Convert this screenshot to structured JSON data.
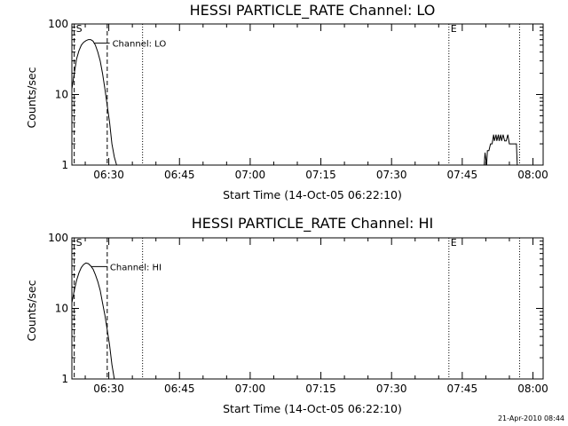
{
  "footer": {
    "date": "21-Apr-2010 08:44"
  },
  "chart_data": [
    {
      "type": "line",
      "title": "HESSI PARTICLE_RATE Channel: LO",
      "xlabel": "Start Time (14-Oct-05 06:22:10)",
      "ylabel": "Counts/sec",
      "yscale": "log",
      "ylim": [
        1,
        100
      ],
      "xlim": [
        "06:22:10",
        "08:02:10"
      ],
      "yticks": [
        "1",
        "10",
        "100"
      ],
      "xticks": [
        "06:30",
        "06:45",
        "07:00",
        "07:15",
        "07:30",
        "07:45",
        "08:00"
      ],
      "grid": false,
      "series": [
        {
          "name": "Channel: LO",
          "points": [
            [
              "06:22:10",
              12
            ],
            [
              "06:22:40",
              20
            ],
            [
              "06:23:10",
              32
            ],
            [
              "06:23:40",
              42
            ],
            [
              "06:24:10",
              50
            ],
            [
              "06:24:40",
              55
            ],
            [
              "06:25:10",
              58
            ],
            [
              "06:25:40",
              60
            ],
            [
              "06:26:10",
              60
            ],
            [
              "06:26:40",
              57
            ],
            [
              "06:27:10",
              50
            ],
            [
              "06:27:40",
              40
            ],
            [
              "06:28:10",
              30
            ],
            [
              "06:28:40",
              20
            ],
            [
              "06:29:10",
              12
            ],
            [
              "06:29:40",
              7
            ],
            [
              "06:30:10",
              4
            ],
            [
              "06:30:40",
              2
            ],
            [
              "06:31:10",
              1.3
            ],
            [
              "06:31:40",
              1
            ],
            [
              null,
              null
            ],
            [
              "07:49:40",
              1
            ],
            [
              "07:49:50",
              1.5
            ],
            [
              "07:50:10",
              1
            ],
            [
              "07:50:20",
              1.6
            ],
            [
              "07:50:40",
              1.6
            ],
            [
              "07:51:00",
              2
            ],
            [
              "07:51:20",
              2
            ],
            [
              "07:51:40",
              2.7
            ],
            [
              "07:51:50",
              2.2
            ],
            [
              "07:52:10",
              2.7
            ],
            [
              "07:52:20",
              2.2
            ],
            [
              "07:52:40",
              2.7
            ],
            [
              "07:52:50",
              2.2
            ],
            [
              "07:53:10",
              2.7
            ],
            [
              "07:53:20",
              2.2
            ],
            [
              "07:53:40",
              2.7
            ],
            [
              "07:54:00",
              2.2
            ],
            [
              "07:54:20",
              2.2
            ],
            [
              "07:54:40",
              2.7
            ],
            [
              "07:55:00",
              2
            ],
            [
              "07:56:30",
              2
            ],
            [
              "07:56:40",
              1
            ]
          ]
        }
      ],
      "markers": [
        {
          "label": "S",
          "time": "06:22:40",
          "style": "dashed"
        },
        {
          "label": "",
          "time": "06:29:40",
          "style": "dashed"
        },
        {
          "label": "",
          "time": "06:37:10",
          "style": "dotted"
        },
        {
          "label": "E",
          "time": "07:42:10",
          "style": "dotted"
        },
        {
          "label": "",
          "time": "07:57:10",
          "style": "dotted"
        }
      ]
    },
    {
      "type": "line",
      "title": "HESSI PARTICLE_RATE Channel: HI",
      "xlabel": "Start Time (14-Oct-05 06:22:10)",
      "ylabel": "Counts/sec",
      "yscale": "log",
      "ylim": [
        1,
        100
      ],
      "xlim": [
        "06:22:10",
        "08:02:10"
      ],
      "yticks": [
        "1",
        "10",
        "100"
      ],
      "xticks": [
        "06:30",
        "06:45",
        "07:00",
        "07:15",
        "07:30",
        "07:45",
        "08:00"
      ],
      "grid": false,
      "series": [
        {
          "name": "Channel: HI",
          "points": [
            [
              "06:22:10",
              12
            ],
            [
              "06:22:40",
              18
            ],
            [
              "06:23:10",
              25
            ],
            [
              "06:23:40",
              32
            ],
            [
              "06:24:10",
              38
            ],
            [
              "06:24:40",
              42
            ],
            [
              "06:25:10",
              44
            ],
            [
              "06:25:40",
              43
            ],
            [
              "06:26:10",
              40
            ],
            [
              "06:26:40",
              36
            ],
            [
              "06:27:10",
              30
            ],
            [
              "06:27:40",
              24
            ],
            [
              "06:28:10",
              18
            ],
            [
              "06:28:40",
              12
            ],
            [
              "06:29:10",
              8
            ],
            [
              "06:29:40",
              5
            ],
            [
              "06:30:10",
              3
            ],
            [
              "06:30:40",
              1.6
            ],
            [
              "06:31:10",
              1
            ]
          ]
        }
      ],
      "markers": [
        {
          "label": "S",
          "time": "06:22:40",
          "style": "dashed"
        },
        {
          "label": "",
          "time": "06:29:40",
          "style": "dashed"
        },
        {
          "label": "",
          "time": "06:37:10",
          "style": "dotted"
        },
        {
          "label": "E",
          "time": "07:42:10",
          "style": "dotted"
        },
        {
          "label": "",
          "time": "07:57:10",
          "style": "dotted"
        }
      ]
    }
  ]
}
